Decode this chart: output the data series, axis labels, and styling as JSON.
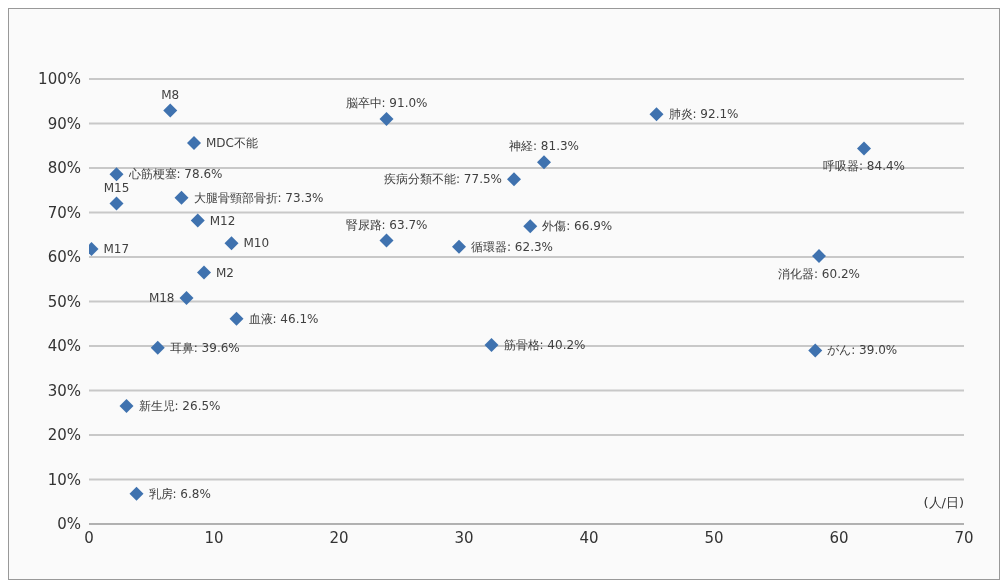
{
  "chart_data": {
    "type": "scatter",
    "xlabel": "(人/日)",
    "x": [
      6.5,
      8.4,
      2.2,
      2.2,
      7.4,
      8.7,
      11.4,
      0.2,
      9.2,
      7.8,
      11.8,
      5.5,
      3.0,
      3.8,
      23.8,
      45.4,
      36.4,
      34.0,
      23.8,
      35.3,
      29.6,
      32.2,
      62.0,
      58.4,
      58.1
    ],
    "values": [
      92.9,
      85.6,
      78.6,
      72.0,
      73.3,
      68.2,
      63.1,
      61.8,
      56.5,
      50.8,
      46.1,
      39.6,
      26.5,
      6.8,
      91.0,
      92.1,
      81.3,
      77.5,
      63.7,
      66.9,
      62.3,
      40.2,
      84.4,
      60.2,
      39.0
    ],
    "value_labels": [
      "M8",
      "MDC不能",
      "心筋梗塞: 78.6%",
      "M15",
      "大腿骨頸部骨折: 73.3%",
      "M12",
      "M10",
      "M17",
      "M2",
      "M18",
      "血液: 46.1%",
      "耳鼻: 39.6%",
      "新生児: 26.5%",
      "乳房: 6.8%",
      "脳卒中: 91.0%",
      "肺炎: 92.1%",
      "神経: 81.3%",
      "疾病分類不能: 77.5%",
      "腎尿路: 63.7%",
      "外傷: 66.9%",
      "循環器: 62.3%",
      "筋骨格: 40.2%",
      "呼吸器: 84.4%",
      "消化器: 60.2%",
      "がん: 39.0%"
    ],
    "color": "#3f72af",
    "marker": "diamond",
    "xlim": [
      0,
      70
    ],
    "xticks": [
      0,
      10,
      20,
      30,
      40,
      50,
      60,
      70
    ],
    "ylim": [
      0,
      100
    ],
    "yticks": [
      {
        "value": 0,
        "label": "0%"
      },
      {
        "value": 10,
        "label": "10%"
      },
      {
        "value": 20,
        "label": "20%"
      },
      {
        "value": 30,
        "label": "30%"
      },
      {
        "value": 40,
        "label": "40%"
      },
      {
        "value": 50,
        "label": "50%"
      },
      {
        "value": 60,
        "label": "60%"
      },
      {
        "value": 70,
        "label": "70%"
      },
      {
        "value": 80,
        "label": "80%"
      },
      {
        "value": 90,
        "label": "90%"
      },
      {
        "value": 100,
        "label": "100%"
      }
    ],
    "grid": "y",
    "legend": false
  }
}
